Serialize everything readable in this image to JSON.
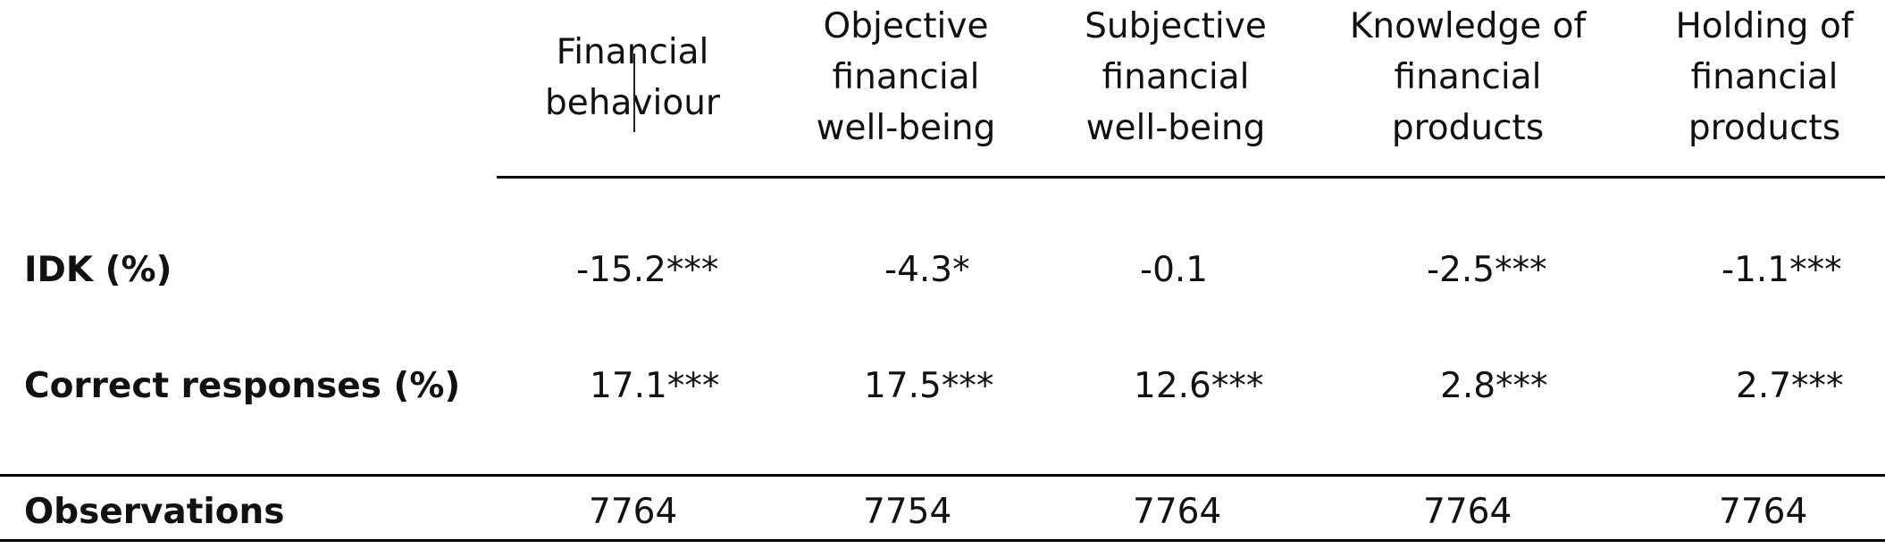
{
  "table": {
    "headers": [
      {
        "lines": [
          "Financial",
          "behaviour"
        ]
      },
      {
        "lines": [
          "Objective",
          "financial",
          "well-being"
        ]
      },
      {
        "lines": [
          "Subjective",
          "financial",
          "well-being"
        ]
      },
      {
        "lines": [
          "Knowledge of",
          "financial",
          "products"
        ]
      },
      {
        "lines": [
          "Holding of",
          "financial",
          "products"
        ]
      }
    ],
    "rows": [
      {
        "label": "IDK (%)",
        "cells": [
          "-15.2***",
          "-4.3*",
          "-0.1",
          "-2.5***",
          "-1.1***"
        ]
      },
      {
        "label": "Correct responses (%)",
        "cells": [
          "17.1***",
          "17.5***",
          "12.6***",
          "2.8***",
          "2.7***"
        ]
      },
      {
        "label": "Observations",
        "cells": [
          "7764",
          "7754",
          "7764",
          "7764",
          "7764"
        ]
      }
    ]
  }
}
